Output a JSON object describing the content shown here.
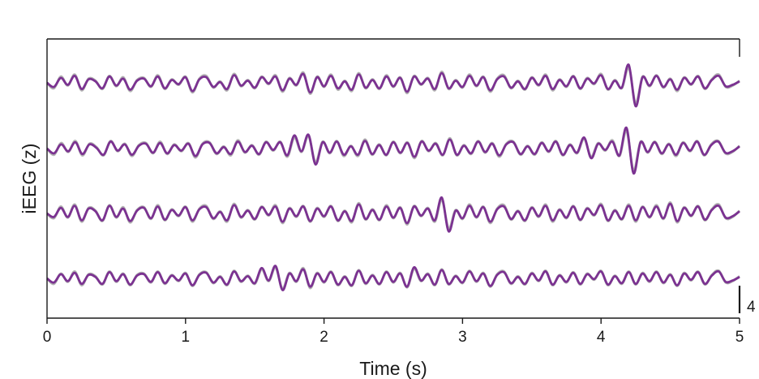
{
  "chart_data": {
    "type": "line",
    "xlabel": "Time (s)",
    "ylabel": "iEEG (z)",
    "xlim": [
      0,
      5
    ],
    "x_ticks": [
      "0",
      "1",
      "2",
      "3",
      "4",
      "5"
    ],
    "scale_bar": {
      "label": "4",
      "value": 4
    },
    "colors": {
      "recorded": "#b3b3b3",
      "predicted": "#7b3291",
      "axis": "#1a1a1a"
    },
    "channels": 4,
    "series": [
      {
        "channel": 1,
        "recorded": [
          0,
          -0.8,
          0.9,
          -0.4,
          1.2,
          -1.1,
          0.6,
          0.3,
          -0.9,
          1.0,
          -0.5,
          0.8,
          -1.2,
          0.4,
          0.7,
          -0.6,
          1.1,
          -0.9,
          0.5,
          -0.3,
          0.9,
          -1.4,
          0.6,
          1.0,
          -0.7,
          0.2,
          -1.1,
          1.3,
          -0.5,
          0.4,
          -0.8,
          0.9,
          -0.2,
          1.1,
          -1.3,
          0.7,
          -0.4,
          1.5,
          -1.6,
          0.9,
          -0.6,
          1.2,
          -1.0,
          0.3,
          -1.2,
          1.4,
          -0.8,
          0.5,
          -0.9,
          1.1,
          -0.6,
          0.8,
          -1.5,
          1.0,
          -0.3,
          0.7,
          -1.1,
          1.6,
          -0.9,
          0.4,
          -0.7,
          1.2,
          -0.5,
          0.9,
          -1.3,
          0.6,
          1.1,
          -0.8,
          0.3,
          -1.0,
          0.8,
          -0.4,
          1.2,
          -1.1,
          0.5,
          -0.6,
          1.0,
          -0.9,
          0.7,
          -0.2,
          1.3,
          -1.0,
          0.4,
          -0.8,
          2.2,
          -3.0,
          0.9,
          -0.5,
          1.1,
          -0.7,
          0.6,
          -1.2,
          0.8,
          -0.3,
          1.0,
          -0.9,
          0.5,
          1.2,
          -0.6,
          -0.4,
          0.3
        ],
        "predicted": [
          0,
          -0.6,
          0.7,
          -0.3,
          1.0,
          -0.9,
          0.5,
          0.2,
          -0.8,
          0.9,
          -0.4,
          0.6,
          -1.0,
          0.3,
          0.6,
          -0.5,
          0.9,
          -0.8,
          0.4,
          -0.2,
          0.8,
          -1.2,
          0.5,
          0.8,
          -0.6,
          0.1,
          -0.9,
          1.1,
          -0.4,
          0.3,
          -0.7,
          0.8,
          -0.1,
          0.9,
          -1.1,
          0.6,
          -0.3,
          1.3,
          -1.4,
          0.8,
          -0.5,
          1.0,
          -0.8,
          0.2,
          -1.0,
          1.2,
          -0.7,
          0.4,
          -0.8,
          0.9,
          -0.5,
          0.7,
          -1.3,
          0.9,
          -0.2,
          0.6,
          -0.9,
          1.4,
          -0.8,
          0.3,
          -0.6,
          1.0,
          -0.4,
          0.8,
          -1.1,
          0.5,
          0.9,
          -0.7,
          0.2,
          -0.9,
          0.7,
          -0.3,
          1.0,
          -0.9,
          0.4,
          -0.5,
          0.9,
          -0.8,
          0.6,
          -0.1,
          1.1,
          -0.9,
          0.3,
          -0.7,
          2.6,
          -3.4,
          0.8,
          -0.4,
          1.0,
          -0.6,
          0.5,
          -1.0,
          0.7,
          -0.2,
          0.9,
          -0.8,
          0.4,
          1.0,
          -0.5,
          -0.3,
          0.2
        ]
      },
      {
        "channel": 2,
        "recorded": [
          0,
          -0.9,
          0.8,
          -0.5,
          1.1,
          -1.0,
          0.7,
          0.2,
          -1.0,
          1.1,
          -0.4,
          0.7,
          -1.1,
          0.5,
          0.8,
          -0.7,
          1.0,
          -0.8,
          0.6,
          -0.4,
          0.8,
          -1.3,
          0.7,
          0.9,
          -0.8,
          0.3,
          -1.0,
          1.2,
          -0.6,
          0.5,
          -0.9,
          1.0,
          -0.3,
          1.0,
          -1.2,
          1.6,
          -0.5,
          1.8,
          -2.0,
          1.0,
          -0.7,
          1.1,
          -1.1,
          0.4,
          -1.1,
          1.3,
          -0.9,
          0.6,
          -1.0,
          1.0,
          -0.7,
          0.9,
          -1.4,
          1.1,
          -0.4,
          0.8,
          -1.0,
          1.5,
          -1.0,
          0.5,
          -0.8,
          1.1,
          -0.6,
          0.8,
          -1.2,
          0.7,
          1.0,
          -0.9,
          0.4,
          -0.9,
          0.9,
          -0.5,
          1.1,
          -1.0,
          0.6,
          -0.7,
          1.4,
          -1.2,
          0.8,
          -0.3,
          1.2,
          -1.1,
          2.6,
          -3.2,
          1.0,
          -0.6,
          1.0,
          -0.8,
          0.7,
          -1.1,
          0.9,
          -0.4,
          1.1,
          -1.0,
          0.6,
          1.1,
          -0.7,
          -0.5,
          0.4
        ],
        "predicted": [
          0,
          -0.7,
          0.6,
          -0.4,
          0.9,
          -0.8,
          0.6,
          0.1,
          -0.9,
          1.0,
          -0.3,
          0.6,
          -0.9,
          0.4,
          0.7,
          -0.6,
          0.8,
          -0.7,
          0.5,
          -0.3,
          0.7,
          -1.1,
          0.6,
          0.8,
          -0.7,
          0.2,
          -0.8,
          1.0,
          -0.5,
          0.4,
          -0.8,
          0.9,
          -0.2,
          0.9,
          -1.0,
          1.9,
          -0.4,
          2.0,
          -2.3,
          0.9,
          -0.6,
          1.0,
          -0.9,
          0.3,
          -0.9,
          1.1,
          -0.8,
          0.5,
          -0.9,
          0.9,
          -0.6,
          0.8,
          -1.2,
          1.0,
          -0.3,
          0.7,
          -0.9,
          1.3,
          -0.9,
          0.4,
          -0.7,
          1.0,
          -0.5,
          0.7,
          -1.0,
          0.6,
          0.9,
          -0.8,
          0.3,
          -0.8,
          0.8,
          -0.4,
          1.0,
          -0.9,
          0.5,
          -0.6,
          1.6,
          -1.4,
          0.7,
          -0.2,
          1.0,
          -1.0,
          3.0,
          -3.6,
          0.9,
          -0.5,
          0.9,
          -0.7,
          0.6,
          -0.9,
          0.8,
          -0.3,
          1.0,
          -0.9,
          0.5,
          1.0,
          -0.6,
          -0.4,
          0.3
        ]
      },
      {
        "channel": 3,
        "recorded": [
          0,
          -0.7,
          1.0,
          -0.6,
          1.3,
          -1.2,
          0.8,
          0.4,
          -1.1,
          1.2,
          -0.6,
          0.9,
          -1.3,
          0.5,
          0.9,
          -0.8,
          1.2,
          -1.0,
          0.6,
          -0.4,
          1.0,
          -1.2,
          0.7,
          1.1,
          -0.8,
          0.3,
          -1.2,
          1.4,
          -0.6,
          0.5,
          -0.9,
          1.0,
          -0.3,
          1.2,
          -1.4,
          0.8,
          -0.5,
          1.1,
          -1.2,
          0.8,
          -0.5,
          1.1,
          -1.1,
          0.4,
          -1.3,
          1.5,
          -0.9,
          0.6,
          -1.0,
          1.2,
          -0.7,
          0.9,
          -1.6,
          1.1,
          -0.4,
          0.8,
          -1.2,
          2.0,
          -2.2,
          0.5,
          -0.8,
          1.3,
          -0.6,
          1.0,
          -1.4,
          0.7,
          1.2,
          -0.9,
          0.4,
          -1.1,
          0.9,
          -0.5,
          1.3,
          -1.2,
          0.6,
          -0.7,
          1.1,
          -1.0,
          0.8,
          -0.3,
          1.4,
          -1.1,
          0.5,
          -0.9,
          1.3,
          -1.2,
          1.0,
          -0.6,
          1.2,
          -0.8,
          1.6,
          -1.3,
          0.9,
          -0.4,
          1.1,
          -1.0,
          0.6,
          1.3,
          -0.7,
          -0.5,
          0.4
        ],
        "predicted": [
          0,
          -0.5,
          0.8,
          -0.5,
          1.1,
          -1.0,
          0.7,
          0.3,
          -1.0,
          1.1,
          -0.5,
          0.7,
          -1.1,
          0.4,
          0.8,
          -0.7,
          1.0,
          -0.9,
          0.5,
          -0.3,
          0.9,
          -1.0,
          0.6,
          0.9,
          -0.7,
          0.2,
          -1.0,
          1.2,
          -0.5,
          0.4,
          -0.8,
          0.9,
          -0.2,
          1.0,
          -1.2,
          0.7,
          -0.4,
          1.0,
          -1.1,
          0.7,
          -0.4,
          1.0,
          -1.0,
          0.3,
          -1.1,
          1.3,
          -0.8,
          0.5,
          -0.9,
          1.0,
          -0.6,
          0.8,
          -1.4,
          1.0,
          -0.3,
          0.7,
          -1.0,
          2.3,
          -2.6,
          0.4,
          -0.7,
          1.1,
          -0.5,
          0.9,
          -1.2,
          0.6,
          1.0,
          -0.8,
          0.3,
          -1.0,
          0.8,
          -0.4,
          1.1,
          -1.0,
          0.5,
          -0.6,
          1.0,
          -0.9,
          0.7,
          -0.2,
          1.2,
          -1.0,
          0.4,
          -0.8,
          1.1,
          -1.0,
          0.9,
          -0.5,
          1.0,
          -0.7,
          1.4,
          -1.1,
          0.8,
          -0.3,
          1.0,
          -0.9,
          0.5,
          1.1,
          -0.6,
          -0.4,
          0.3
        ]
      },
      {
        "channel": 4,
        "recorded": [
          0,
          -0.8,
          0.7,
          -0.5,
          1.0,
          -1.0,
          0.6,
          0.3,
          -0.9,
          1.0,
          -0.5,
          0.7,
          -1.0,
          0.5,
          0.7,
          -0.6,
          1.0,
          -0.8,
          0.5,
          -0.4,
          0.8,
          -1.1,
          0.6,
          0.9,
          -0.7,
          0.3,
          -1.0,
          1.1,
          -0.5,
          0.4,
          -0.8,
          1.3,
          -0.4,
          1.6,
          -1.5,
          0.8,
          -0.5,
          1.5,
          -1.4,
          0.8,
          -0.6,
          1.0,
          -1.0,
          0.3,
          -1.1,
          1.2,
          -0.8,
          0.5,
          -0.9,
          1.0,
          -0.6,
          0.8,
          -1.3,
          1.4,
          -0.4,
          0.7,
          -1.0,
          1.3,
          -0.9,
          0.4,
          -0.7,
          1.1,
          -0.5,
          0.8,
          -1.2,
          0.6,
          1.0,
          -0.8,
          0.3,
          -0.9,
          0.8,
          -0.4,
          1.1,
          -1.0,
          0.5,
          -0.6,
          0.9,
          -0.9,
          0.7,
          -0.2,
          1.1,
          -1.0,
          0.4,
          -0.8,
          1.0,
          -0.9,
          0.8,
          -0.5,
          1.0,
          -0.7,
          0.6,
          -1.1,
          0.8,
          -0.3,
          1.0,
          -0.9,
          0.5,
          1.1,
          -0.6,
          -0.4,
          0.3
        ],
        "predicted": [
          0,
          -0.6,
          0.6,
          -0.4,
          0.8,
          -0.8,
          0.5,
          0.2,
          -0.8,
          0.9,
          -0.4,
          0.6,
          -0.9,
          0.4,
          0.6,
          -0.5,
          0.9,
          -0.7,
          0.4,
          -0.3,
          0.7,
          -1.0,
          0.5,
          0.8,
          -0.6,
          0.2,
          -0.9,
          1.0,
          -0.4,
          0.3,
          -0.7,
          1.5,
          -0.3,
          1.8,
          -1.7,
          0.7,
          -0.4,
          1.3,
          -1.2,
          0.7,
          -0.5,
          0.9,
          -0.9,
          0.2,
          -1.0,
          1.1,
          -0.7,
          0.4,
          -0.8,
          0.9,
          -0.5,
          0.7,
          -1.2,
          1.6,
          -0.3,
          0.6,
          -0.9,
          1.2,
          -0.8,
          0.3,
          -0.6,
          1.0,
          -0.4,
          0.7,
          -1.1,
          0.5,
          0.9,
          -0.7,
          0.2,
          -0.8,
          0.7,
          -0.3,
          1.0,
          -0.9,
          0.4,
          -0.5,
          0.8,
          -0.8,
          0.6,
          -0.1,
          1.0,
          -0.9,
          0.3,
          -0.7,
          0.9,
          -0.8,
          0.7,
          -0.4,
          0.9,
          -0.6,
          0.5,
          -1.0,
          0.7,
          -0.2,
          0.9,
          -0.8,
          0.4,
          1.0,
          -0.5,
          -0.3,
          0.2
        ]
      }
    ]
  }
}
